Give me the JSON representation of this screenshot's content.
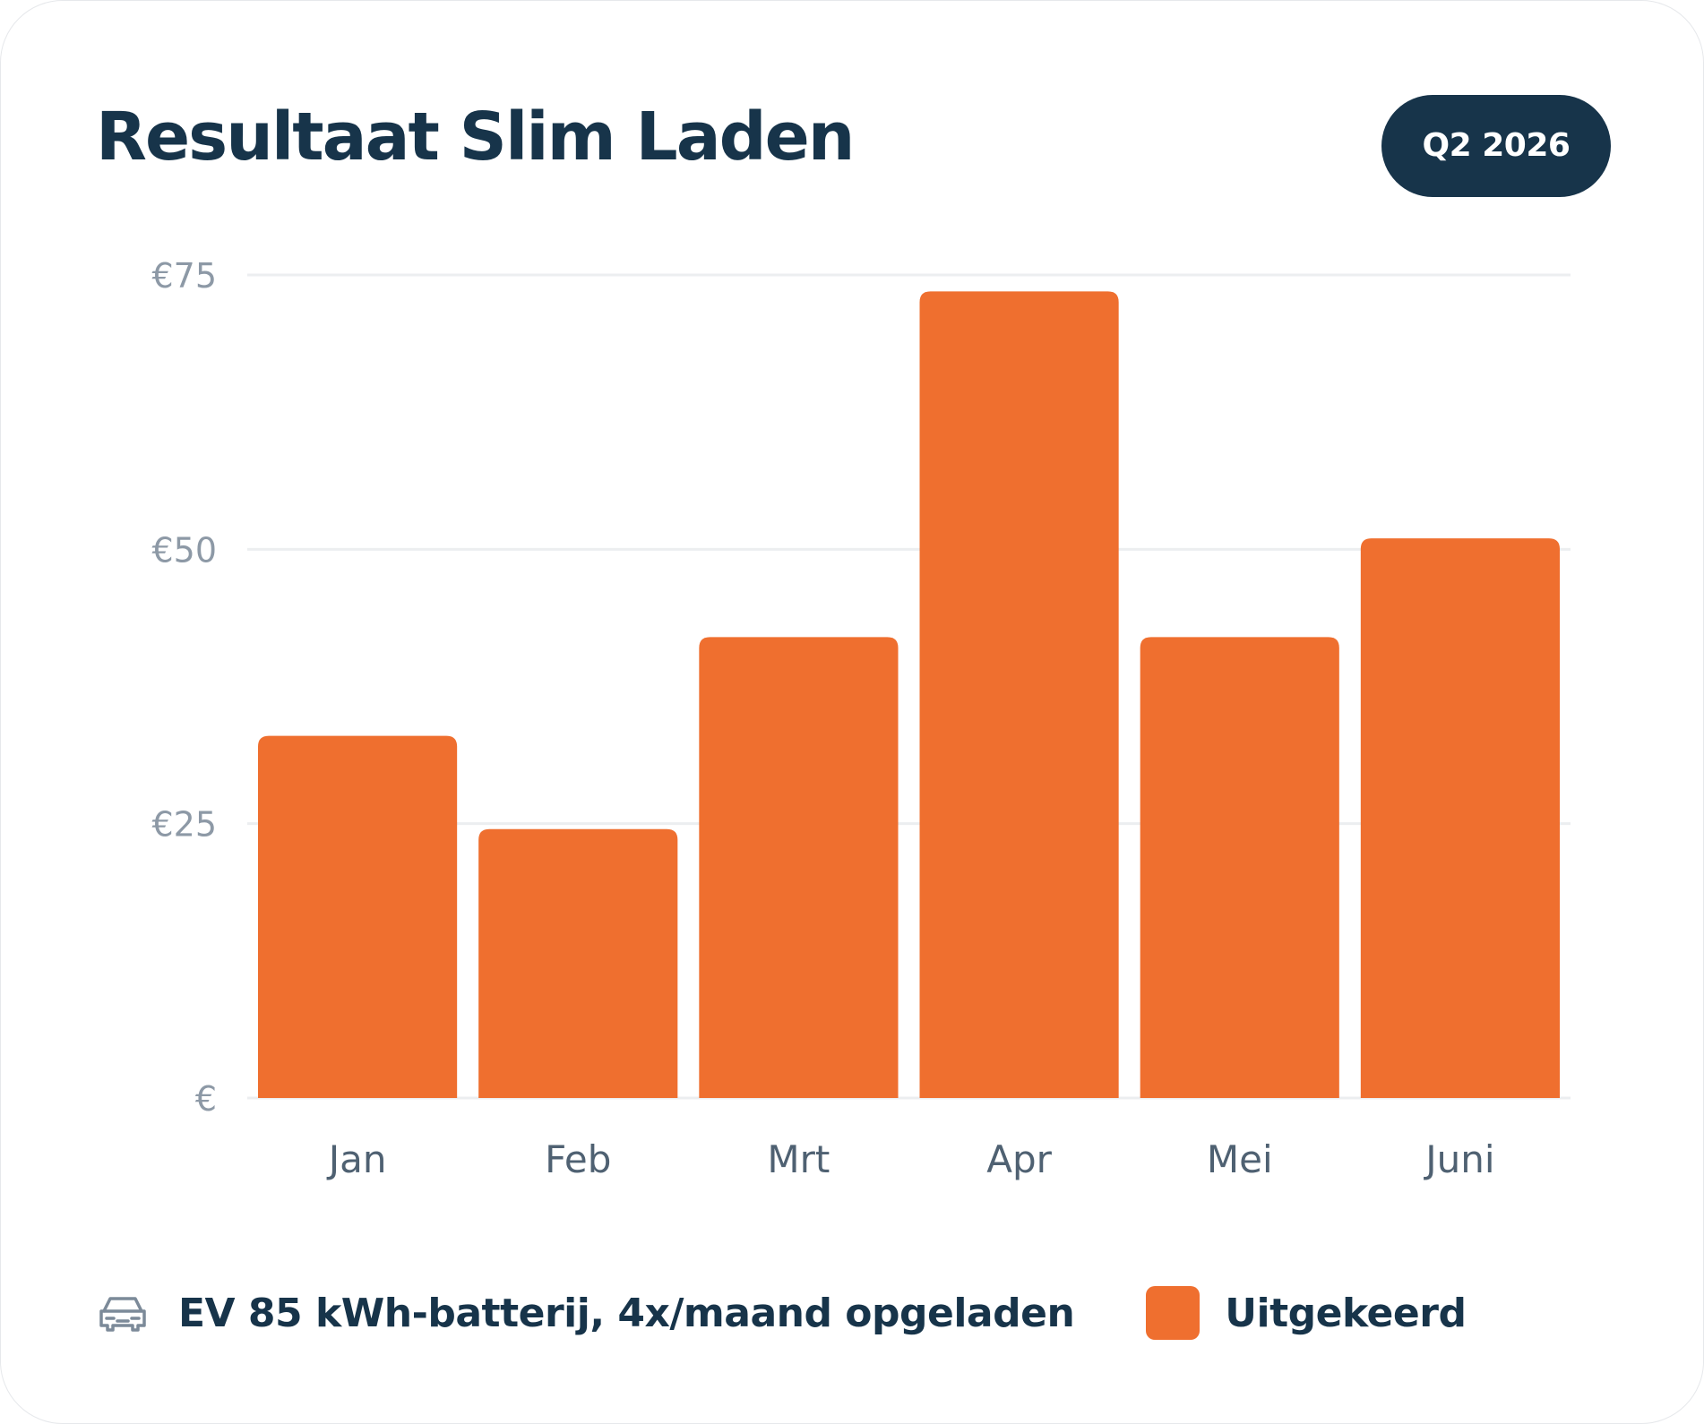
{
  "header": {
    "title": "Resultaat Slim Laden",
    "period": "Q2 2026"
  },
  "chart_data": {
    "type": "bar",
    "title": "Resultaat Slim Laden",
    "categories": [
      "Jan",
      "Feb",
      "Mrt",
      "Apr",
      "Mei",
      "Juni"
    ],
    "series": [
      {
        "name": "Uitgekeerd",
        "values": [
          33,
          24.5,
          42,
          73.5,
          42,
          51
        ]
      }
    ],
    "ylim": [
      0,
      75
    ],
    "yticks": [
      0,
      25,
      50,
      75
    ],
    "ytick_labels": [
      "€",
      "€25",
      "€50",
      "€75"
    ],
    "xlabel": "",
    "ylabel": "",
    "grid": true,
    "legend_position": "bottom"
  },
  "legend": {
    "note_icon": "car-icon",
    "note": "EV 85 kWh-batterij, 4x/maand opgeladen",
    "series_label": "Uitgekeerd"
  },
  "colors": {
    "bar": "#ef6f2f",
    "title": "#17344a",
    "badge_bg": "#17344a",
    "badge_text": "#ffffff",
    "grid": "#eceef0",
    "ytick": "#8d99a6",
    "xtick": "#4f6172"
  }
}
